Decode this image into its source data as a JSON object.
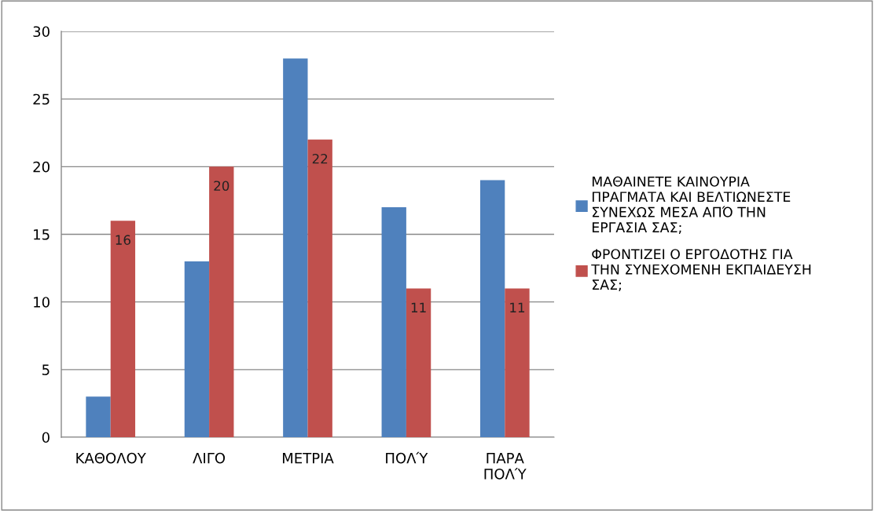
{
  "chart_data": {
    "type": "bar",
    "categories": [
      "ΚΑΘΟΛΟΥ",
      "ΛΙΓΟ",
      "ΜΕΤΡΙΑ",
      "ΠΟΛΎ",
      "ΠΑΡΑ ΠΟΛΎ"
    ],
    "series": [
      {
        "name": "ΜΑΘΑΙΝΕΤΕ ΚΑΙΝΟΥΡΙΑ ΠΡΑΓΜΑΤΑ ΚΑΙ ΒΕΛΤΙΩΝΕΣΤΕ ΣΥΝΕΧΩΣ ΜΕΣΑ ΑΠΌ ΤΗΝ ΕΡΓΑΣΙΑ ΣΑΣ;",
        "color": "#4f81bd",
        "values": [
          3,
          13,
          28,
          17,
          19
        ]
      },
      {
        "name": "ΦΡΟΝΤΙΖΕΙ Ο ΕΡΓΟΔΟΤΗΣ ΓΙΑ ΤΗΝ ΣΥΝΕΧΟΜΕΝΗ ΕΚΠΑΙΔΕΥΣΗ ΣΑΣ;",
        "color": "#c0504d",
        "values": [
          16,
          20,
          22,
          11,
          11
        ],
        "value_labels": [
          "16",
          "20",
          "22",
          "11",
          "11"
        ]
      }
    ],
    "ylim": [
      0,
      30
    ],
    "yticks": [
      0,
      5,
      10,
      15,
      20,
      25,
      30
    ],
    "grid": "y",
    "legend": "right"
  }
}
